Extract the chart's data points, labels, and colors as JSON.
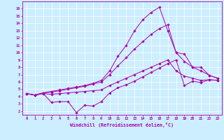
{
  "xlabel": "Windchill (Refroidissement éolien,°C)",
  "bg_color": "#cceeff",
  "line_color": "#aa00aa",
  "grid_color": "#ffffff",
  "spine_color": "#aa00aa",
  "x_ticks": [
    0,
    1,
    2,
    3,
    4,
    5,
    6,
    7,
    8,
    9,
    10,
    11,
    12,
    13,
    14,
    15,
    16,
    17,
    18,
    19,
    20,
    21,
    22,
    23
  ],
  "y_ticks": [
    2,
    3,
    4,
    5,
    6,
    7,
    8,
    9,
    10,
    11,
    12,
    13,
    14,
    15,
    16
  ],
  "ylim": [
    1.5,
    17.0
  ],
  "xlim": [
    -0.5,
    23.5
  ],
  "series": [
    [
      4.4,
      4.2,
      4.4,
      3.2,
      3.3,
      3.3,
      1.8,
      2.8,
      2.7,
      3.3,
      4.5,
      5.2,
      5.6,
      6.1,
      6.7,
      7.3,
      7.9,
      8.5,
      9.0,
      5.5,
      6.1,
      5.9,
      6.3,
      6.2
    ],
    [
      4.4,
      4.2,
      4.4,
      4.3,
      4.4,
      4.5,
      4.6,
      4.7,
      4.8,
      4.9,
      5.5,
      6.0,
      6.5,
      7.0,
      7.5,
      8.0,
      8.5,
      9.0,
      7.5,
      6.8,
      6.5,
      6.2,
      6.3,
      6.2
    ],
    [
      4.4,
      4.2,
      4.5,
      4.6,
      4.8,
      5.0,
      5.2,
      5.4,
      5.7,
      6.0,
      7.0,
      8.2,
      9.3,
      10.5,
      11.5,
      12.5,
      13.3,
      13.8,
      10.0,
      8.8,
      8.0,
      7.5,
      6.9,
      6.5
    ],
    [
      4.4,
      4.2,
      4.5,
      4.7,
      4.9,
      5.1,
      5.3,
      5.5,
      5.8,
      6.2,
      7.5,
      9.5,
      11.0,
      13.0,
      14.5,
      15.5,
      16.2,
      13.0,
      10.0,
      9.8,
      8.0,
      8.0,
      6.9,
      6.5
    ]
  ]
}
